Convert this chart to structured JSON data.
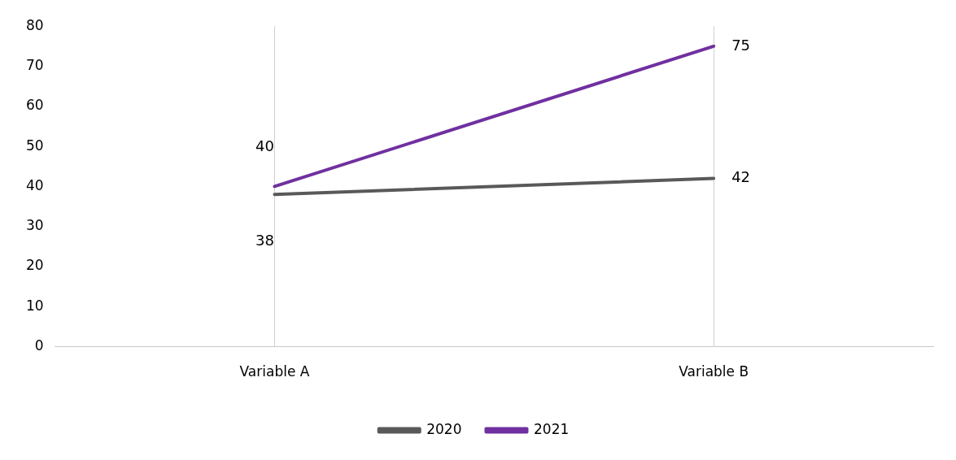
{
  "chart_data": {
    "type": "line",
    "categories": [
      "Variable A",
      "Variable B"
    ],
    "series": [
      {
        "name": "2020",
        "color": "#595959",
        "values": [
          38,
          42
        ]
      },
      {
        "name": "2021",
        "color": "#7030a0",
        "values": [
          40,
          75
        ]
      }
    ],
    "ylim": [
      0,
      80
    ],
    "yticks": [
      0,
      10,
      20,
      30,
      40,
      50,
      60,
      70,
      80
    ],
    "grid": "x",
    "legend": "bottom",
    "data_labels": true,
    "marker": "none",
    "line_style": "solid"
  }
}
